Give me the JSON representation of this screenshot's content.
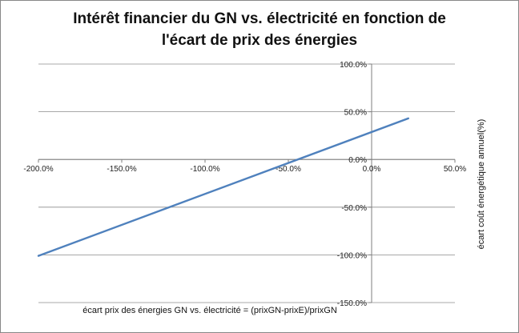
{
  "chart_data": {
    "type": "line",
    "title_lines": [
      "Intérêt financier du GN vs. électricité en fonction de",
      "l'écart de prix des énergies"
    ],
    "xlabel": "écart prix des énergies  GN vs. électricité = (prixGN-prixE)/prixGN",
    "ylabel": "écart coût énergétique annuel(%)",
    "xlim": [
      -2.0,
      0.5
    ],
    "ylim": [
      -1.5,
      1.0
    ],
    "x_ticks": [
      -2.0,
      -1.5,
      -1.0,
      -0.5,
      0.0,
      0.5
    ],
    "x_tick_labels": [
      "-200.0%",
      "-150.0%",
      "-100.0%",
      "-50.0%",
      "0.0%",
      "50.0%"
    ],
    "y_ticks": [
      1.0,
      0.5,
      0.0,
      -0.5,
      -1.0,
      -1.5
    ],
    "y_tick_labels": [
      "100.0%",
      "50.0%",
      "0.0%",
      "-50.0%",
      "-100.0%",
      "-150.0%"
    ],
    "grid": "horizontal",
    "legend": "none",
    "series": [
      {
        "color": "#4F81BD",
        "x": [
          -2.0,
          0.22
        ],
        "y": [
          -1.01,
          0.43
        ]
      }
    ]
  }
}
